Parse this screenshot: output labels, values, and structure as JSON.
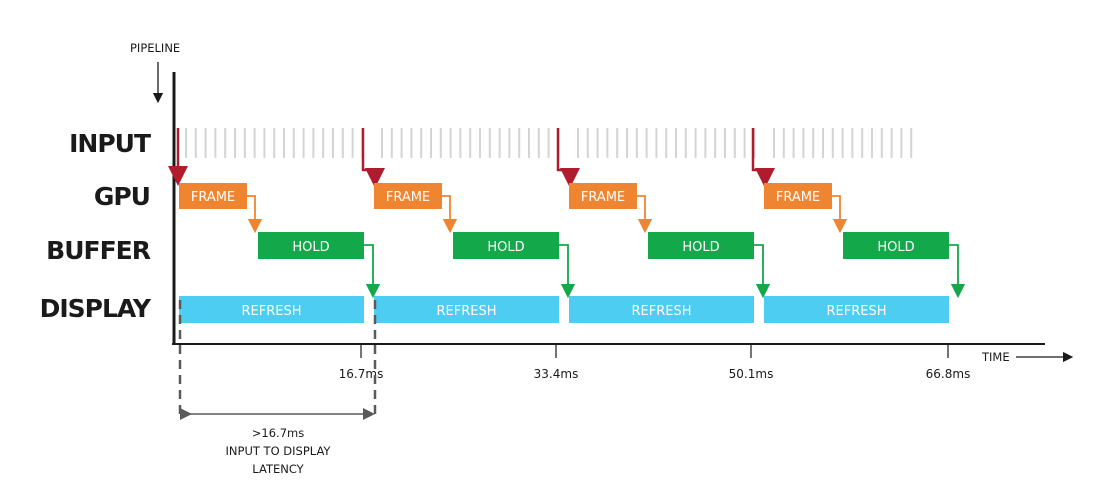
{
  "axis": {
    "y_label": "PIPELINE",
    "x_label": "TIME"
  },
  "rows": [
    {
      "key": "input",
      "label": "INPUT"
    },
    {
      "key": "gpu",
      "label": "GPU"
    },
    {
      "key": "buffer",
      "label": "BUFFER"
    },
    {
      "key": "display",
      "label": "DISPLAY"
    }
  ],
  "bars": {
    "frame_label": "FRAME",
    "hold_label": "HOLD",
    "refresh_label": "REFRESH"
  },
  "ticks": [
    "16.7ms",
    "33.4ms",
    "50.1ms",
    "66.8ms"
  ],
  "latency": {
    "value": ">16.7ms",
    "line1": "INPUT TO DISPLAY",
    "line2": "LATENCY"
  },
  "colors": {
    "frame": "#ef8531",
    "hold": "#13a84a",
    "refresh": "#4dcdf2",
    "input_arrow": "#b01c2e",
    "input_tick": "#d4d4d4",
    "axis": "#1a1a1a",
    "dashed": "#5a5a5a"
  }
}
